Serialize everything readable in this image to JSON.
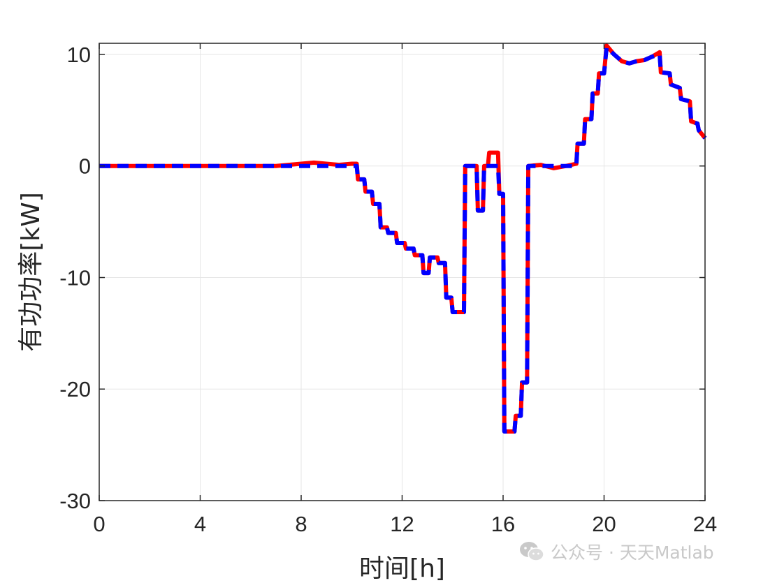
{
  "chart_data": {
    "type": "line",
    "title": "",
    "xlabel": "时间[h]",
    "ylabel": "有功功率[kW]",
    "xlim": [
      0,
      24
    ],
    "ylim": [
      -30,
      11
    ],
    "xticks": [
      0,
      4,
      8,
      12,
      16,
      20,
      24
    ],
    "yticks": [
      -30,
      -20,
      -10,
      0,
      10
    ],
    "xtick_labels": [
      "0",
      "4",
      "8",
      "12",
      "16",
      "20",
      "24"
    ],
    "ytick_labels": [
      "-30",
      "-20",
      "-10",
      "0",
      "10"
    ],
    "grid": true,
    "series": [
      {
        "color": "#ff0000",
        "style": "solid",
        "x": [
          0,
          1,
          2,
          3,
          4,
          5,
          6,
          7,
          8,
          8.5,
          9,
          9.5,
          10,
          10.2,
          10.25,
          10.5,
          10.55,
          10.8,
          10.85,
          11.1,
          11.15,
          11.4,
          11.45,
          11.75,
          11.8,
          12.1,
          12.15,
          12.45,
          12.5,
          12.8,
          12.85,
          13.05,
          13.1,
          13.4,
          13.45,
          13.7,
          13.75,
          13.95,
          14.0,
          14.45,
          14.5,
          14.95,
          15.0,
          15.2,
          15.25,
          15.4,
          15.45,
          15.8,
          15.85,
          16.0,
          16.05,
          16.45,
          16.5,
          16.7,
          16.75,
          16.95,
          17.0,
          17.5,
          18.0,
          18.5,
          18.9,
          18.95,
          19.2,
          19.25,
          19.5,
          19.55,
          19.75,
          19.8,
          20.0,
          20.1,
          20.4,
          20.7,
          21.0,
          21.3,
          21.6,
          21.9,
          22.2,
          22.25,
          22.6,
          22.65,
          23.0,
          23.05,
          23.4,
          23.45,
          23.7,
          23.75,
          24.0
        ],
        "y": [
          0,
          0,
          0,
          0,
          0,
          0,
          0,
          0,
          0.2,
          0.3,
          0.2,
          0.1,
          0.2,
          0.2,
          -1.2,
          -1.2,
          -2.3,
          -2.3,
          -3.4,
          -3.4,
          -5.5,
          -5.5,
          -6.0,
          -6.0,
          -6.9,
          -6.9,
          -7.4,
          -7.4,
          -8.0,
          -8.0,
          -9.6,
          -9.6,
          -8.2,
          -8.2,
          -8.7,
          -8.7,
          -11.8,
          -11.8,
          -13.1,
          -13.1,
          0.0,
          0.0,
          -4.0,
          -4.0,
          0.0,
          0.0,
          1.2,
          1.2,
          -2.5,
          -2.5,
          -23.8,
          -23.8,
          -22.4,
          -22.4,
          -19.4,
          -19.4,
          0.0,
          0.1,
          -0.2,
          0.0,
          0.2,
          2.0,
          2.0,
          4.2,
          4.2,
          6.5,
          6.5,
          8.3,
          8.3,
          10.8,
          10.0,
          9.4,
          9.2,
          9.4,
          9.5,
          9.8,
          10.2,
          8.4,
          8.3,
          7.3,
          7.0,
          6.0,
          5.8,
          4.0,
          3.8,
          3.2,
          2.5
        ]
      },
      {
        "color": "#0000ff",
        "style": "dashed",
        "x": [
          0,
          1,
          2,
          3,
          4,
          5,
          6,
          7,
          8,
          8.5,
          9,
          9.5,
          10,
          10.2,
          10.25,
          10.5,
          10.55,
          10.8,
          10.85,
          11.1,
          11.15,
          11.4,
          11.45,
          11.75,
          11.8,
          12.1,
          12.15,
          12.45,
          12.5,
          12.8,
          12.85,
          13.05,
          13.1,
          13.4,
          13.45,
          13.7,
          13.75,
          13.95,
          14.0,
          14.45,
          14.5,
          14.95,
          15.0,
          15.2,
          15.25,
          15.4,
          15.45,
          15.8,
          15.85,
          16.0,
          16.05,
          16.45,
          16.5,
          16.7,
          16.75,
          16.95,
          17.0,
          17.5,
          18.0,
          18.5,
          18.9,
          18.95,
          19.2,
          19.25,
          19.5,
          19.55,
          19.75,
          19.8,
          20.0,
          20.1,
          20.4,
          20.7,
          21.0,
          21.3,
          21.6,
          21.9,
          22.2,
          22.25,
          22.6,
          22.65,
          23.0,
          23.05,
          23.4,
          23.45,
          23.7,
          23.75,
          24.0
        ],
        "y": [
          0,
          0,
          0,
          0,
          0,
          0,
          0,
          0,
          0,
          0,
          0,
          0,
          0,
          0,
          -1.2,
          -1.2,
          -2.3,
          -2.3,
          -3.4,
          -3.4,
          -5.5,
          -5.5,
          -6.0,
          -6.0,
          -6.9,
          -6.9,
          -7.4,
          -7.4,
          -8.0,
          -8.0,
          -9.6,
          -9.6,
          -8.2,
          -8.2,
          -8.7,
          -8.7,
          -11.8,
          -11.8,
          -13.1,
          -13.1,
          0.0,
          0.0,
          -4.0,
          -4.0,
          0.0,
          0.0,
          0.0,
          0.0,
          -2.5,
          -2.5,
          -23.8,
          -23.8,
          -22.4,
          -22.4,
          -19.4,
          -19.4,
          0.0,
          0.0,
          0.0,
          0.0,
          0.0,
          2.0,
          2.0,
          4.2,
          4.2,
          6.5,
          6.5,
          8.3,
          8.3,
          10.6,
          10.0,
          9.4,
          9.2,
          9.4,
          9.5,
          9.8,
          10.0,
          8.4,
          8.3,
          7.3,
          7.0,
          6.0,
          5.8,
          4.0,
          3.8,
          3.2,
          2.5
        ]
      }
    ]
  },
  "watermark": {
    "text": "公众号 · 天天Matlab",
    "icon": "wechat-icon"
  }
}
